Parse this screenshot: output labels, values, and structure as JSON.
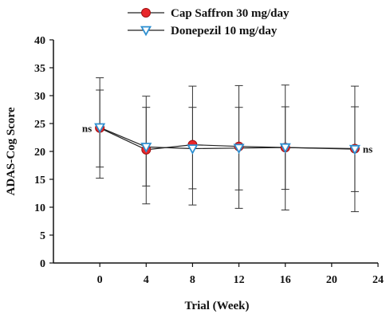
{
  "chart_data": {
    "type": "line",
    "xlabel": "Trial (Week)",
    "ylabel": "ADAS-Cog Score",
    "xlim": [
      -4,
      24
    ],
    "ylim": [
      0,
      40
    ],
    "x_ticks": [
      0,
      4,
      8,
      12,
      16,
      20,
      24
    ],
    "y_ticks": [
      0,
      5,
      10,
      15,
      20,
      25,
      30,
      35,
      40
    ],
    "legend_position": "top",
    "series": [
      {
        "name": "Cap Saffron 30 mg/day",
        "marker": "circle",
        "color": "#e8262a",
        "x": [
          0,
          4,
          8,
          12,
          16,
          22
        ],
        "y": [
          24.2,
          20.3,
          21.2,
          20.9,
          20.7,
          20.5
        ],
        "err_low": [
          15.2,
          10.6,
          10.4,
          9.8,
          9.5,
          9.2
        ],
        "err_high": [
          33.2,
          29.9,
          31.7,
          31.8,
          31.9,
          31.7
        ]
      },
      {
        "name": "Donepezil 10 mg/day",
        "marker": "triangle-down",
        "color": "#2e8fd0",
        "x": [
          0,
          4,
          8,
          12,
          16,
          22
        ],
        "y": [
          24.3,
          20.8,
          20.5,
          20.6,
          20.7,
          20.4
        ],
        "err_low": [
          17.2,
          13.8,
          13.3,
          13.1,
          13.2,
          12.8
        ],
        "err_high": [
          31.0,
          27.9,
          27.9,
          27.9,
          28.0,
          28.0
        ]
      }
    ],
    "annotations": [
      {
        "text": "ns",
        "x": 0,
        "y": 24.2,
        "side": "left"
      },
      {
        "text": "ns",
        "x": 22,
        "y": 20.5,
        "side": "right"
      }
    ]
  }
}
